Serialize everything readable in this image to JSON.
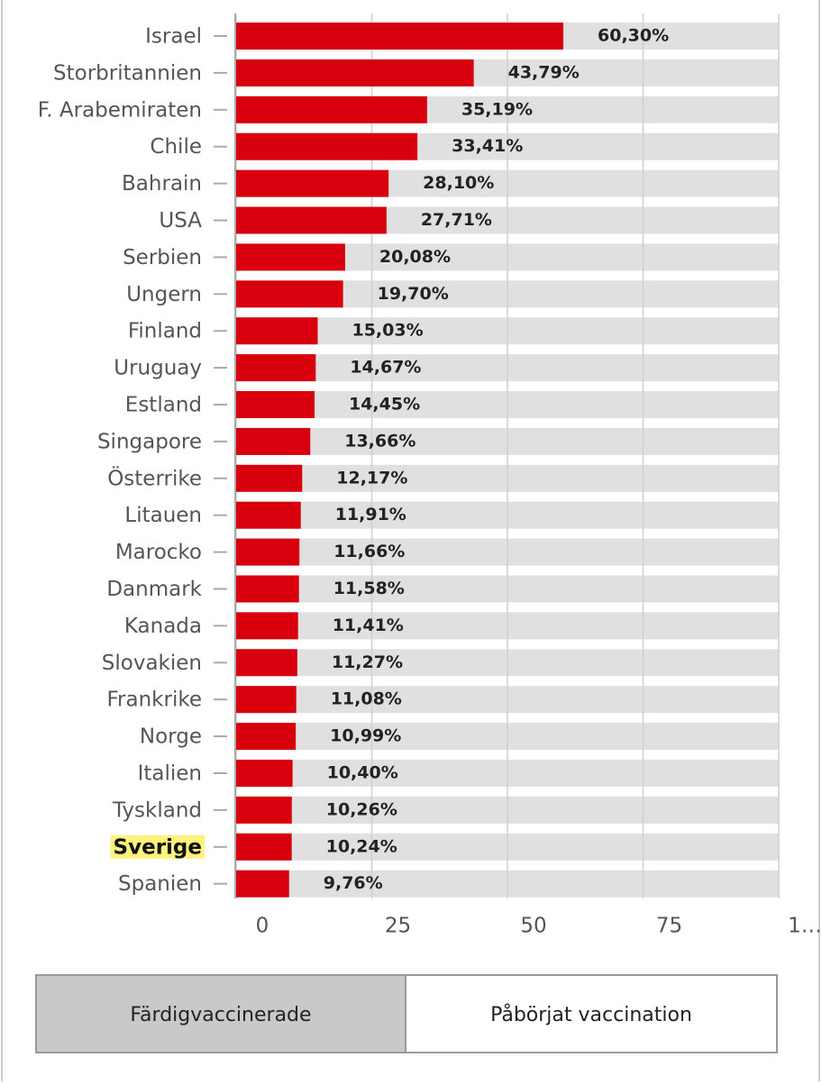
{
  "chart_data": {
    "type": "bar",
    "orientation": "horizontal",
    "categories": [
      "Israel",
      "Storbritannien",
      "F. Arabemiraten",
      "Chile",
      "Bahrain",
      "USA",
      "Serbien",
      "Ungern",
      "Finland",
      "Uruguay",
      "Estland",
      "Singapore",
      "Österrike",
      "Litauen",
      "Marocko",
      "Danmark",
      "Kanada",
      "Slovakien",
      "Frankrike",
      "Norge",
      "Italien",
      "Tyskland",
      "Sverige",
      "Spanien"
    ],
    "values": [
      60.3,
      43.79,
      35.19,
      33.41,
      28.1,
      27.71,
      20.08,
      19.7,
      15.03,
      14.67,
      14.45,
      13.66,
      12.17,
      11.91,
      11.66,
      11.58,
      11.41,
      11.27,
      11.08,
      10.99,
      10.4,
      10.26,
      10.24,
      9.76
    ],
    "value_labels": [
      "60,30%",
      "43,79%",
      "35,19%",
      "33,41%",
      "28,10%",
      "27,71%",
      "20,08%",
      "19,70%",
      "15,03%",
      "14,67%",
      "14,45%",
      "13,66%",
      "12,17%",
      "11,91%",
      "11,66%",
      "11,58%",
      "11,41%",
      "11,27%",
      "11,08%",
      "10,99%",
      "10,40%",
      "10,26%",
      "10,24%",
      "9,76%"
    ],
    "color": "#d9000d",
    "track_color": "#e0e0e0",
    "xlim": [
      0,
      100
    ],
    "xticks": [
      0,
      25,
      50,
      75,
      {
        "value": 100,
        "label": "1…"
      }
    ],
    "grid": true,
    "highlight": {
      "index": 22,
      "color": "#fff27a"
    }
  },
  "controls": {
    "options": [
      "Färdigvaccinerade",
      "Påbörjat vaccination"
    ],
    "selected": 0
  }
}
